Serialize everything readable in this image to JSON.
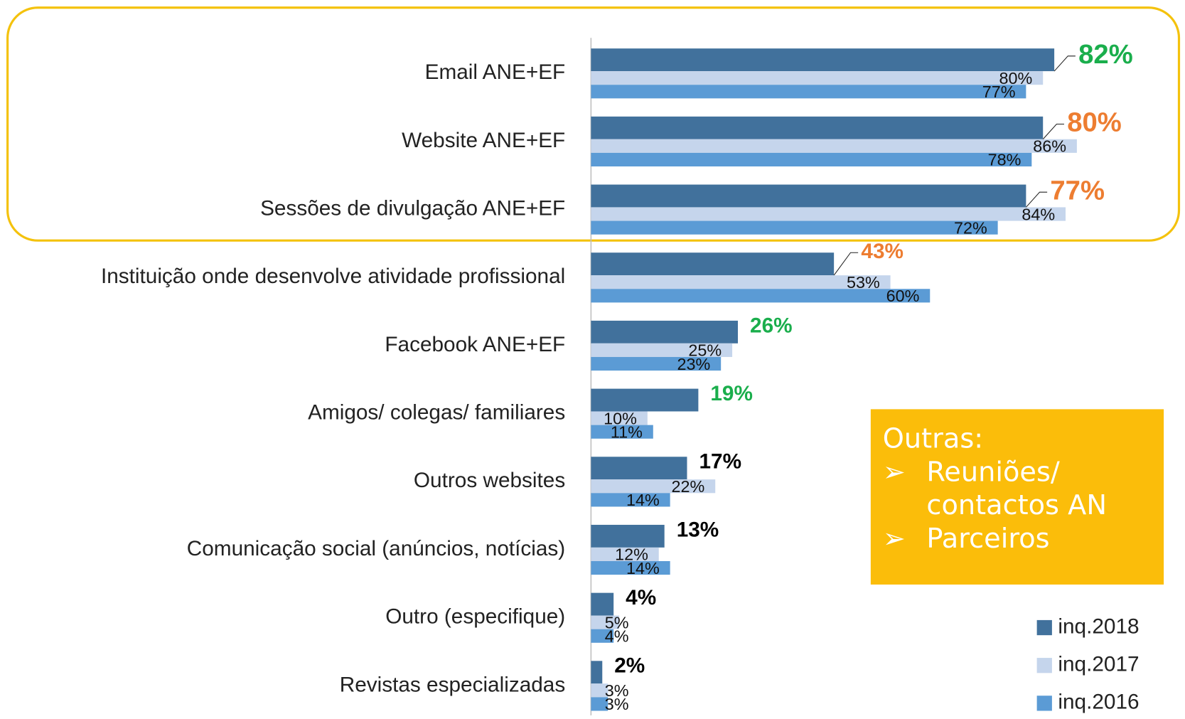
{
  "chart_data": {
    "type": "hbar",
    "categories": [
      "Email ANE+EF",
      "Website ANE+EF",
      "Sessões de divulgação ANE+EF",
      "Instituição onde desenvolve atividade profissional",
      "Facebook ANE+EF",
      "Amigos/ colegas/ familiares",
      "Outros websites",
      "Comunicação social (anúncios, notícias)",
      "Outro (especifique)",
      "Revistas especializadas"
    ],
    "series": [
      {
        "name": "inq.2018",
        "color": "#41719c",
        "values": [
          82,
          80,
          77,
          43,
          26,
          19,
          17,
          13,
          4,
          2
        ],
        "value_labels": [
          "82%",
          "80%",
          "77%",
          "43%",
          "26%",
          "19%",
          "17%",
          "13%",
          "4%",
          "2%"
        ],
        "label_colors": [
          "#1aae4c",
          "#ed7d31",
          "#ed7d31",
          "#ed7d31",
          "#1aae4c",
          "#1aae4c",
          "#000000",
          "#000000",
          "#000000",
          "#000000"
        ]
      },
      {
        "name": "inq.2017",
        "color": "#c5d5ec",
        "values": [
          80,
          86,
          84,
          53,
          25,
          10,
          22,
          12,
          5,
          3
        ],
        "value_labels": [
          "80%",
          "86%",
          "84%",
          "53%",
          "25%",
          "10%",
          "22%",
          "12%",
          "5%",
          "3%"
        ]
      },
      {
        "name": "inq.2016",
        "color": "#5b9bd5",
        "values": [
          77,
          78,
          72,
          60,
          23,
          11,
          14,
          14,
          4,
          3
        ],
        "value_labels": [
          "77%",
          "78%",
          "72%",
          "60%",
          "23%",
          "11%",
          "14%",
          "14%",
          "4%",
          "3%"
        ]
      }
    ],
    "xlim": [
      0,
      100
    ],
    "legend": "bottom-right",
    "callout": {
      "title": "Outras:",
      "items": [
        "Reuniões/ contactos AN",
        "Parceiros"
      ]
    }
  }
}
